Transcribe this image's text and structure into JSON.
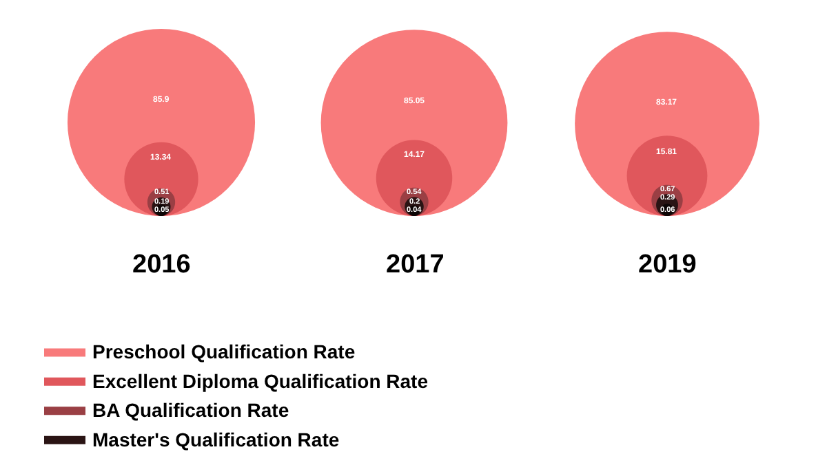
{
  "chart_data": {
    "type": "other",
    "categories": [
      "2016",
      "2017",
      "2019"
    ],
    "series": [
      {
        "name": "Preschool Qualification Rate",
        "color": "#f87a7b",
        "values": [
          85.9,
          85.05,
          83.17
        ]
      },
      {
        "name": "Excellent Diploma Qualification Rate",
        "color": "#e0575c",
        "values": [
          13.34,
          14.17,
          15.81
        ]
      },
      {
        "name": "BA Qualification Rate",
        "color": "#9a3f44",
        "values": [
          0.51,
          0.54,
          0.67
        ]
      },
      {
        "name": "Master's Qualification Rate",
        "color": "#2a1414",
        "values": [
          0.19,
          0.2,
          0.29
        ]
      },
      {
        "color": "#0d0505",
        "values": [
          0.05,
          0.04,
          0.06
        ]
      }
    ],
    "data_labels": true,
    "legend": "bottom left"
  }
}
